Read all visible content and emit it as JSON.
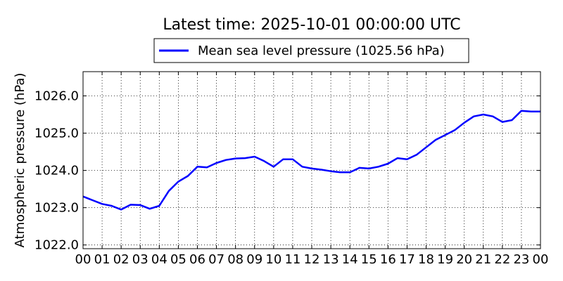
{
  "chart_data": {
    "type": "line",
    "title": "Latest time: 2025-10-01 00:00:00 UTC",
    "xlabel": "",
    "ylabel": "Atmospheric pressure (hPa)",
    "xlim": [
      0,
      24
    ],
    "ylim": [
      1021.9,
      1026.65
    ],
    "x_tick_labels": [
      "00",
      "01",
      "02",
      "03",
      "04",
      "05",
      "06",
      "07",
      "08",
      "09",
      "10",
      "11",
      "12",
      "13",
      "14",
      "15",
      "16",
      "17",
      "18",
      "19",
      "20",
      "21",
      "22",
      "23",
      "00"
    ],
    "y_ticks": [
      1022.0,
      1023.0,
      1024.0,
      1025.0,
      1026.0
    ],
    "y_tick_labels": [
      "1022.0",
      "1023.0",
      "1024.0",
      "1025.0",
      "1026.0"
    ],
    "grid": true,
    "legend_position": "top-center",
    "series": [
      {
        "name": "Mean sea level pressure (1025.56 hPa)",
        "color": "#0000ff",
        "x": [
          0,
          0.5,
          1.0,
          1.5,
          2.0,
          2.5,
          3.0,
          3.5,
          4.0,
          4.5,
          5.0,
          5.5,
          6.0,
          6.5,
          7.0,
          7.5,
          8.0,
          8.5,
          9.0,
          9.5,
          10.0,
          10.5,
          11.0,
          11.5,
          12.0,
          12.5,
          13.0,
          13.5,
          14.0,
          14.5,
          15.0,
          15.5,
          16.0,
          16.5,
          17.0,
          17.5,
          18.0,
          18.5,
          19.0,
          19.5,
          20.0,
          20.5,
          21.0,
          21.5,
          22.0,
          22.5,
          23.0,
          23.5,
          24.0
        ],
        "values": [
          1023.3,
          1023.2,
          1023.1,
          1023.05,
          1022.95,
          1023.08,
          1023.07,
          1022.97,
          1023.05,
          1023.45,
          1023.7,
          1023.85,
          1024.1,
          1024.08,
          1024.2,
          1024.28,
          1024.32,
          1024.33,
          1024.37,
          1024.25,
          1024.1,
          1024.3,
          1024.3,
          1024.1,
          1024.05,
          1024.02,
          1023.98,
          1023.95,
          1023.95,
          1024.07,
          1024.05,
          1024.1,
          1024.18,
          1024.33,
          1024.3,
          1024.42,
          1024.62,
          1024.82,
          1024.95,
          1025.08,
          1025.28,
          1025.45,
          1025.5,
          1025.45,
          1025.3,
          1025.35,
          1025.6,
          1025.58,
          1025.58
        ]
      }
    ]
  }
}
